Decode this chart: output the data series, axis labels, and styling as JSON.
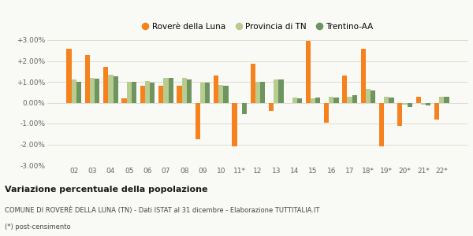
{
  "categories": [
    "02",
    "03",
    "04",
    "05",
    "06",
    "07",
    "08",
    "09",
    "10",
    "11*",
    "12",
    "13",
    "14",
    "15",
    "16",
    "17",
    "18*",
    "19*",
    "20*",
    "21*",
    "22*"
  ],
  "rovere": [
    2.6,
    2.3,
    1.7,
    0.2,
    0.8,
    0.8,
    0.8,
    -1.75,
    1.3,
    -2.1,
    1.85,
    -0.4,
    0.0,
    2.95,
    -0.95,
    1.3,
    2.6,
    -2.1,
    -1.1,
    0.3,
    -0.8
  ],
  "provincia": [
    1.1,
    1.2,
    1.35,
    1.0,
    1.05,
    1.2,
    1.2,
    0.95,
    0.85,
    0.0,
    1.0,
    1.1,
    0.25,
    0.2,
    0.3,
    0.3,
    0.65,
    0.3,
    -0.1,
    -0.1,
    0.3
  ],
  "trentino": [
    1.0,
    1.15,
    1.25,
    1.0,
    0.95,
    1.2,
    1.1,
    0.95,
    0.8,
    -0.55,
    1.0,
    1.1,
    0.2,
    0.25,
    0.25,
    0.35,
    0.6,
    0.25,
    -0.2,
    -0.15,
    0.3
  ],
  "color_rovere": "#f5821e",
  "color_provincia": "#b8cc90",
  "color_trentino": "#6e9460",
  "title": "Variazione percentuale della popolazione",
  "subtitle": "COMUNE DI ROVERÈ DELLA LUNA (TN) - Dati ISTAT al 31 dicembre - Elaborazione TUTTITALIA.IT",
  "footnote": "(*) post-censimento",
  "ylim": [
    -3.0,
    3.0
  ],
  "yticks": [
    -3.0,
    -2.0,
    -1.0,
    0.0,
    1.0,
    2.0,
    3.0
  ],
  "ytick_labels": [
    "-3.00%",
    "-2.00%",
    "-1.00%",
    "0.00%",
    "+1.00%",
    "+2.00%",
    "+3.00%"
  ],
  "legend_labels": [
    "Roverè della Luna",
    "Provincia di TN",
    "Trentino-AA"
  ],
  "background_color": "#f9f9f6",
  "grid_color": "#deddd0"
}
